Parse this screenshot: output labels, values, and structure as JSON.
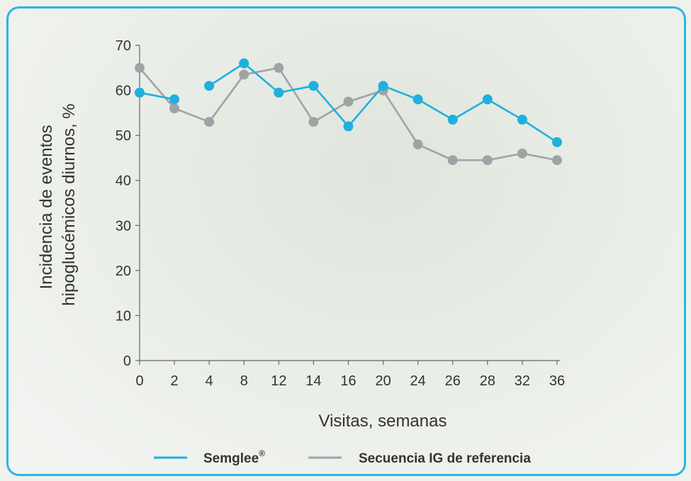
{
  "chart_data": {
    "type": "line",
    "xlabel": "Visitas, semanas",
    "ylabel_lines": [
      "Incidencia de eventos",
      "hipoglucémicos diurnos, %"
    ],
    "x": [
      0,
      2,
      4,
      8,
      12,
      14,
      16,
      20,
      24,
      26,
      28,
      32,
      36
    ],
    "x_tick_labels": [
      "0",
      "2",
      "4",
      "8",
      "12",
      "14",
      "16",
      "20",
      "24",
      "26",
      "28",
      "32",
      "36"
    ],
    "y_ticks": [
      0,
      10,
      20,
      30,
      40,
      50,
      60,
      70
    ],
    "ylim": [
      0,
      70
    ],
    "grid": false,
    "legend_position": "bottom",
    "series": [
      {
        "name": "Semglee",
        "name_superscript": "®",
        "color": "#1fb0e0",
        "segments": [
          [
            0,
            1
          ],
          [
            2,
            8
          ],
          [
            8,
            12
          ]
        ],
        "values": [
          59.5,
          58,
          61,
          66,
          59.5,
          61,
          52,
          61,
          58,
          53.5,
          58,
          53.5,
          48.5
        ]
      },
      {
        "name": "Secuencia IG de referencia",
        "color": "#a0a3a6",
        "segments": [
          [
            0,
            12
          ]
        ],
        "values": [
          65,
          56,
          53,
          63.5,
          65,
          53,
          57.5,
          60,
          48,
          44.5,
          44.5,
          46,
          44.5
        ]
      }
    ]
  }
}
